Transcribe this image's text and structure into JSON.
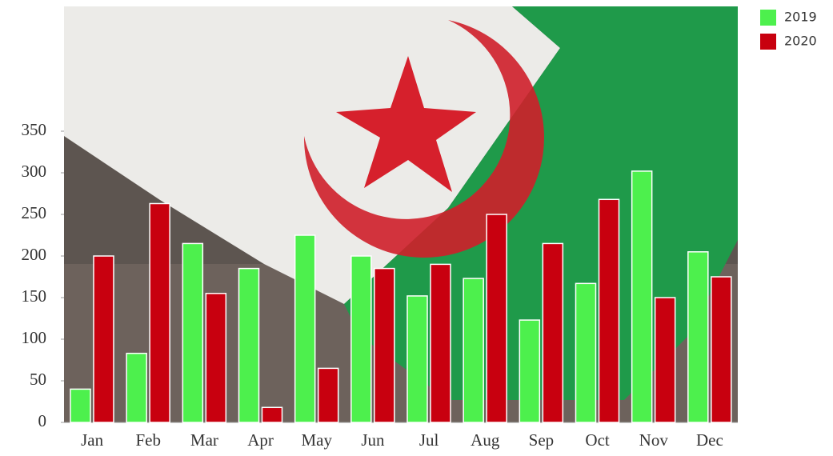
{
  "chart_data": {
    "type": "bar",
    "categories": [
      "Jan",
      "Feb",
      "Mar",
      "Apr",
      "May",
      "Jun",
      "Jul",
      "Aug",
      "Sep",
      "Oct",
      "Nov",
      "Dec"
    ],
    "series": [
      {
        "name": "2019",
        "color": "#4df04d",
        "values": [
          40,
          83,
          215,
          185,
          225,
          200,
          152,
          173,
          123,
          167,
          302,
          205
        ]
      },
      {
        "name": "2020",
        "color": "#c8000f",
        "values": [
          200,
          263,
          155,
          18,
          65,
          185,
          190,
          250,
          215,
          268,
          150,
          175
        ]
      }
    ],
    "ylim": [
      0,
      500
    ],
    "yticks": [
      0,
      50,
      100,
      150,
      200,
      250,
      300,
      350
    ],
    "legend": "top-right"
  }
}
